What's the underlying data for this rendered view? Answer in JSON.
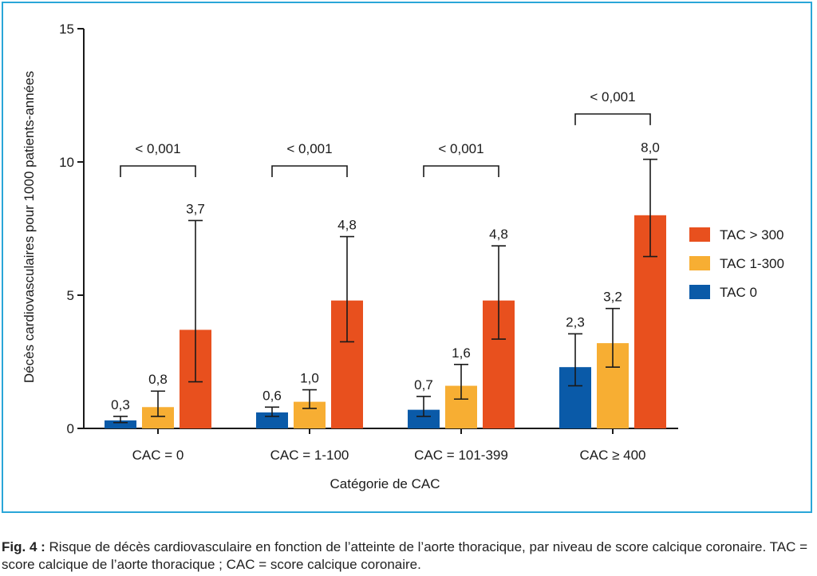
{
  "chart_data": {
    "type": "bar",
    "xlabel": "Catégorie de CAC",
    "ylabel": "Décès cardiovasculaires pour 1000 patients-années",
    "ylim": [
      0,
      15
    ],
    "yticks": [
      "0",
      "5",
      "10",
      "15"
    ],
    "yticks_values": [
      0,
      5,
      10,
      15
    ],
    "grid": false,
    "legend_position": "right",
    "categories": [
      "CAC = 0",
      "CAC = 1-100",
      "CAC = 101-399",
      "CAC ≥ 400"
    ],
    "series": [
      {
        "name": "TAC 0",
        "color": "#0a5aa8",
        "values": [
          0.3,
          0.6,
          0.7,
          2.3
        ],
        "labels": [
          "0,3",
          "0,6",
          "0,7",
          "2,3"
        ],
        "err_low": [
          0.22,
          0.45,
          0.45,
          1.6
        ],
        "err_high": [
          0.45,
          0.8,
          1.2,
          3.55
        ]
      },
      {
        "name": "TAC 1-300",
        "color": "#f7ae33",
        "values": [
          0.8,
          1.0,
          1.6,
          3.2
        ],
        "labels": [
          "0,8",
          "1,0",
          "1,6",
          "3,2"
        ],
        "err_low": [
          0.45,
          0.75,
          1.1,
          2.3
        ],
        "err_high": [
          1.4,
          1.45,
          2.4,
          4.5
        ]
      },
      {
        "name": "TAC > 300",
        "color": "#e8501e",
        "values": [
          3.7,
          4.8,
          4.8,
          8.0
        ],
        "labels": [
          "3,7",
          "4,8",
          "4,8",
          "8,0"
        ],
        "err_low": [
          1.75,
          3.25,
          3.35,
          6.45
        ],
        "err_high": [
          7.8,
          7.2,
          6.85,
          10.1
        ]
      }
    ],
    "significance": [
      {
        "label": "< 0,001",
        "level": 9.85
      },
      {
        "label": "< 0,001",
        "level": 9.85
      },
      {
        "label": "< 0,001",
        "level": 9.85
      },
      {
        "label": "< 0,001",
        "level": 11.8
      }
    ]
  },
  "caption": {
    "prefix": "Fig. 4 :",
    "text": "Risque de décès cardiovasculaire en fonction de l’atteinte de l’aorte thoracique, par niveau de score calcique coronaire. TAC = score calcique de l’aorte thoracique ; CAC = score calcique coronaire."
  }
}
